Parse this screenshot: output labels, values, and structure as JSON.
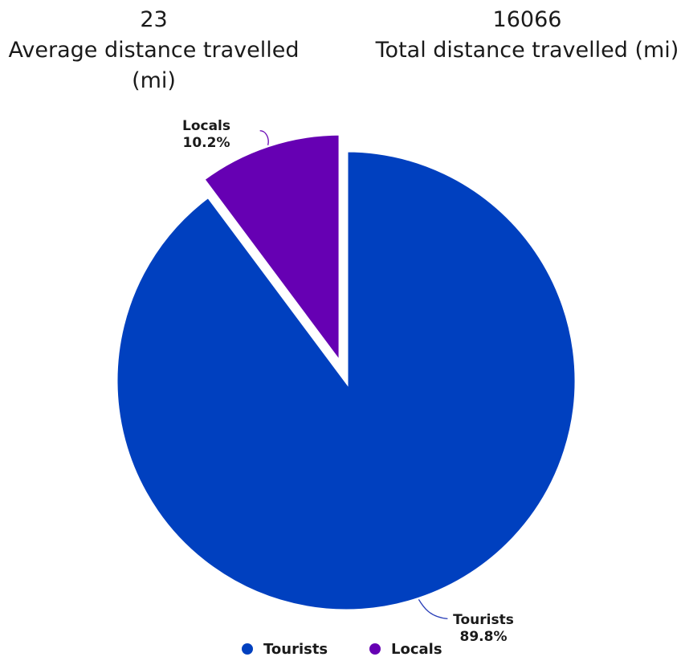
{
  "kpis": [
    {
      "value": "23",
      "label": "Average distance travelled (mi)"
    },
    {
      "value": "16066",
      "label": "Total distance travelled (mi)"
    }
  ],
  "colors": {
    "tourists": "#0040BF",
    "locals": "#6600B3",
    "connector": "#2a3fb8",
    "background": "#ffffff"
  },
  "chart_data": {
    "type": "pie",
    "title": "",
    "slices": [
      {
        "name": "Tourists",
        "value": 89.8,
        "label": "89.8%",
        "color": "#0040BF",
        "exploded": false
      },
      {
        "name": "Locals",
        "value": 10.2,
        "label": "10.2%",
        "color": "#6600B3",
        "exploded": true
      }
    ],
    "legend": {
      "position": "bottom",
      "items": [
        "Tourists",
        "Locals"
      ]
    }
  }
}
